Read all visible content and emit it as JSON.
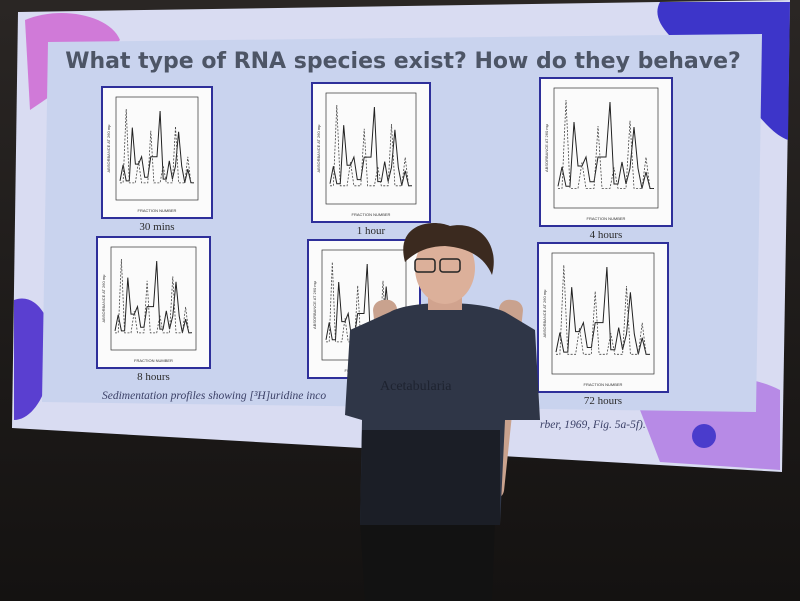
{
  "slide": {
    "title": "What type of RNA species exist? How do they behave?",
    "panels": [
      {
        "label": "30 mins"
      },
      {
        "label": "1 hour"
      },
      {
        "label": "4 hours"
      },
      {
        "label": "8 hours"
      },
      {
        "label": null
      },
      {
        "label": "72 hours"
      }
    ],
    "x_axis_label": "FRACTION NUMBER",
    "y_axis_label": "ABSORBANCE AT 260 mμ",
    "caption_start": "Sedimentation profiles showing [³H]uridine inco",
    "caption_end": "rber, 1969, Fig. 5a-5f).",
    "shirt_text": "Acetabularia"
  }
}
